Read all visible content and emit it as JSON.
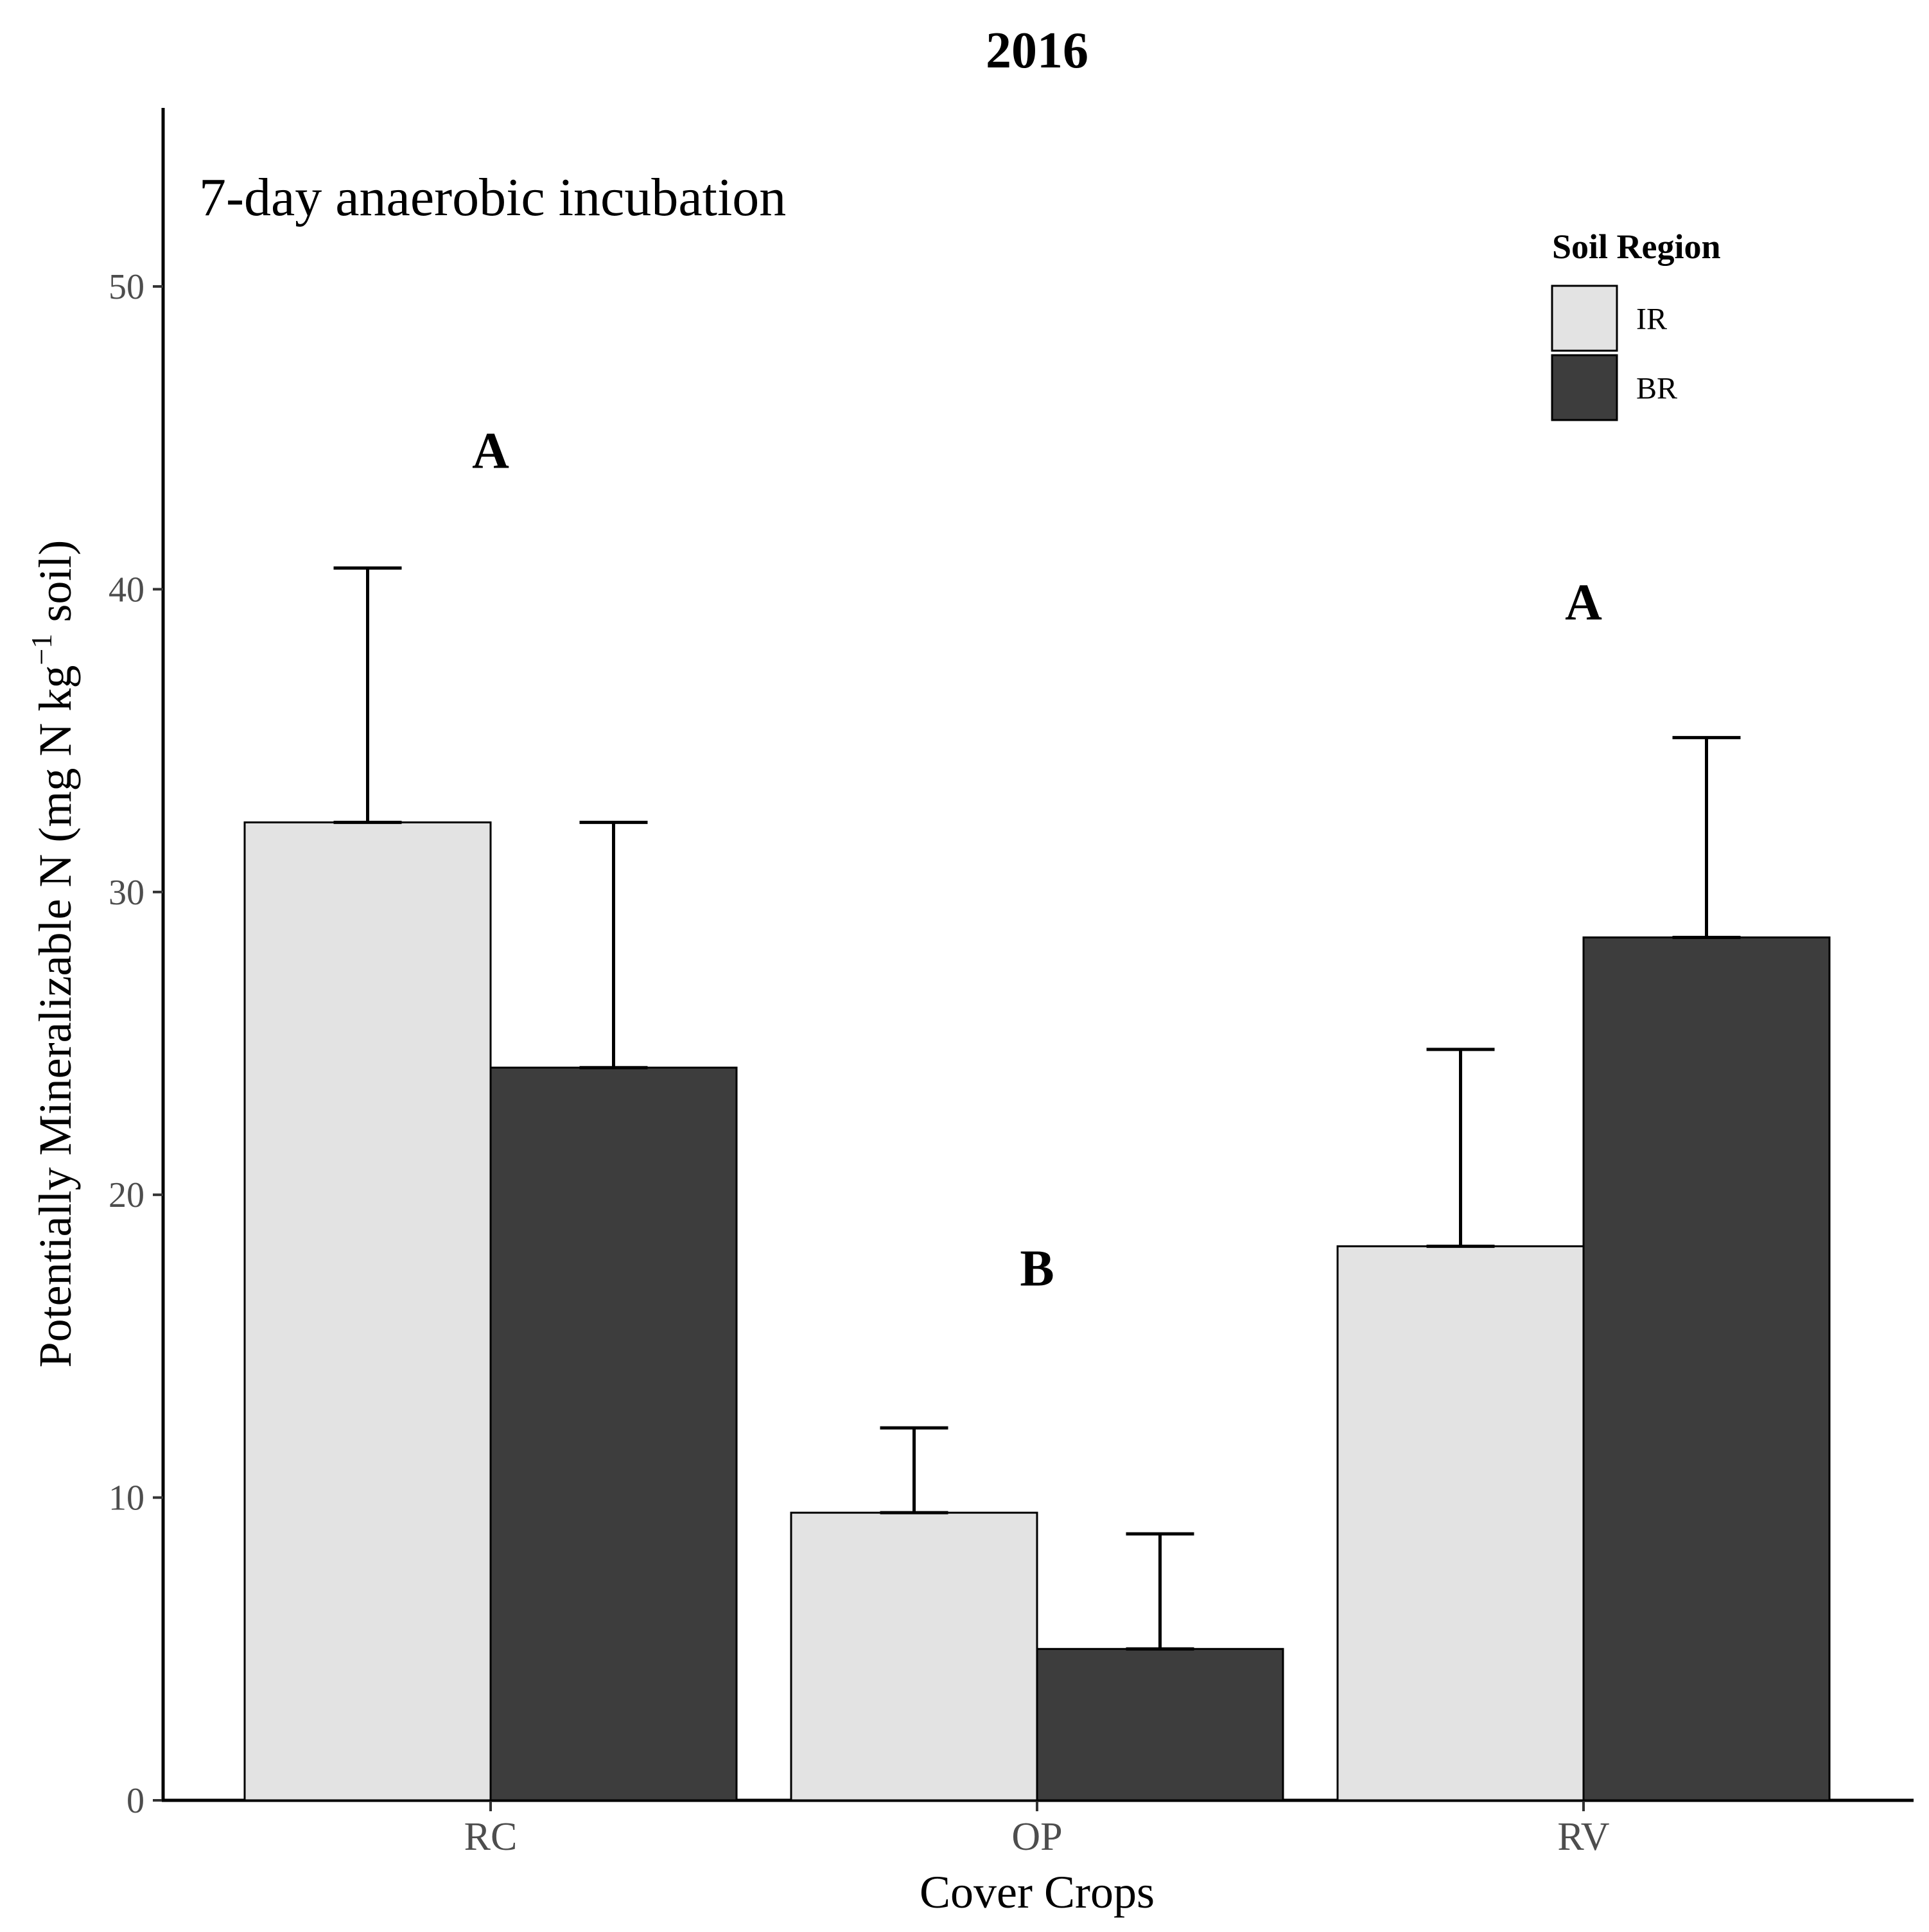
{
  "chart_data": {
    "type": "bar",
    "title": "2016",
    "annotation": "7-day anaerobic incubation",
    "xlabel": "Cover Crops",
    "ylabel_main": "Potentially Mineralizable N  (mg N kg",
    "ylabel_sup": "−1",
    "ylabel_end": " soil)",
    "categories": [
      "RC",
      "OP",
      "RV"
    ],
    "ylim": [
      0,
      55
    ],
    "yticks": [
      0,
      10,
      20,
      30,
      40,
      50
    ],
    "legend": {
      "title": "Soil Region",
      "position": "top-right"
    },
    "series": [
      {
        "name": "IR",
        "color": "#e3e3e3",
        "values": [
          32.3,
          9.5,
          18.3
        ],
        "errors": [
          8.4,
          2.8,
          6.5
        ]
      },
      {
        "name": "BR",
        "color": "#3d3d3d",
        "values": [
          24.2,
          5.0,
          28.5
        ],
        "errors": [
          8.1,
          3.8,
          6.6
        ]
      }
    ],
    "significance": [
      {
        "category": "RC",
        "label": "A",
        "y": 44.6
      },
      {
        "category": "OP",
        "label": "B",
        "y": 17.6
      },
      {
        "category": "RV",
        "label": "A",
        "y": 39.6
      }
    ]
  }
}
